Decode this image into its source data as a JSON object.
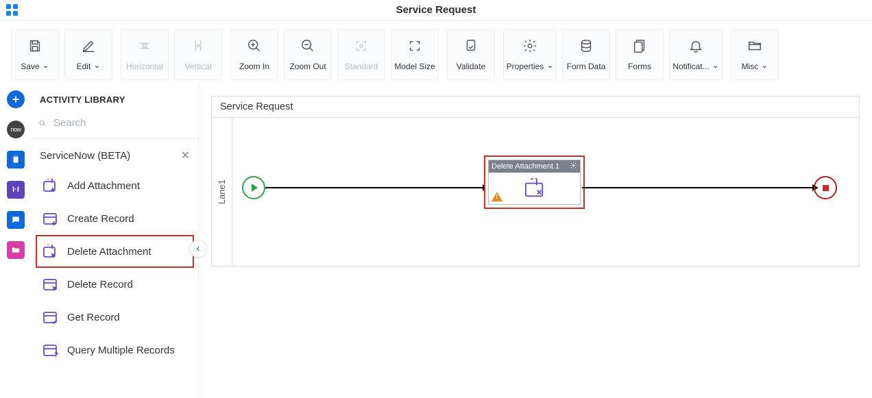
{
  "page_title": "Service Request",
  "toolbar": {
    "save": "Save",
    "edit": "Edit",
    "horizontal": "Horizontal",
    "vertical": "Vertical",
    "zoom_in": "Zoom In",
    "zoom_out": "Zoom Out",
    "standard": "Standard",
    "model_size": "Model Size",
    "validate": "Validate",
    "properties": "Properties",
    "form_data": "Form Data",
    "forms": "Forms",
    "notifications": "Notificat...",
    "misc": "Misc"
  },
  "sidebar": {
    "header": "ACTIVITY LIBRARY",
    "search_placeholder": "Search",
    "category": "ServiceNow (BETA)",
    "activities": [
      {
        "label": "Add Attachment",
        "kind": "add"
      },
      {
        "label": "Create Record",
        "kind": "create"
      },
      {
        "label": "Delete Attachment",
        "kind": "del-attach",
        "selected": true
      },
      {
        "label": "Delete Record",
        "kind": "del-rec"
      },
      {
        "label": "Get Record",
        "kind": "get"
      },
      {
        "label": "Query Multiple Records",
        "kind": "query"
      }
    ]
  },
  "canvas": {
    "title": "Service Request",
    "lane_label": "Lane1",
    "task": {
      "title": "Delete Attachment.1",
      "has_warning": true
    }
  },
  "colors": {
    "accent_blue": "#0f69d7",
    "highlight_red": "#c7302b",
    "start_green": "#2ba54a",
    "end_red": "#b32020",
    "task_icon": "#6b4bc4",
    "warn": "#e8871b",
    "rail_now": "#424242",
    "rail_purple": "#5e45b7",
    "rail_pink": "#d83ea8"
  }
}
